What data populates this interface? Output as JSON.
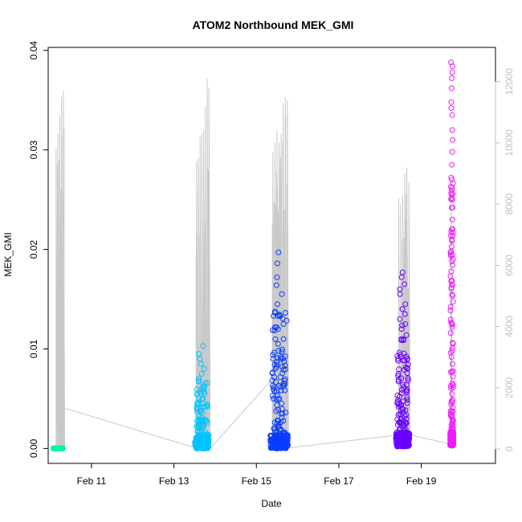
{
  "chart_data": {
    "type": "scatter",
    "title": "ATOM2 Northbound MEK_GMI",
    "xlabel": "Date",
    "ylabel": "MEK_GMI",
    "x_tick_labels": [
      "Feb 11",
      "Feb 13",
      "Feb 15",
      "Feb 17",
      "Feb 19"
    ],
    "x_tick_values": [
      11,
      13,
      15,
      17,
      19
    ],
    "xlim": [
      9.95,
      20.8
    ],
    "y_tick_labels": [
      "0.00",
      "0.01",
      "0.02",
      "0.03",
      "0.04"
    ],
    "y_tick_values": [
      0,
      0.01,
      0.02,
      0.03,
      0.04
    ],
    "ylim": [
      -0.0015,
      0.0403
    ],
    "y2_tick_labels": [
      "0",
      "2000",
      "4000",
      "6000",
      "8000",
      "10000",
      "12000"
    ],
    "y2_tick_values": [
      0,
      2000,
      4000,
      6000,
      8000,
      10000,
      12000
    ],
    "y2lim": [
      -470,
      13120
    ],
    "grid": false,
    "colors": {
      "line": "#c8c8c8",
      "axis": "#000000",
      "right_axis": "#c0c0c0",
      "series": [
        "#00f5a8",
        "#00c4ff",
        "#0a3cff",
        "#6a00ff",
        "#ee1aff"
      ]
    },
    "line_series": [
      {
        "x": 10.18,
        "y2": 1400
      },
      {
        "x": 13.5,
        "y2": 50
      },
      {
        "x": 13.9,
        "y2": 50
      },
      {
        "x": 15.4,
        "y2": 2300
      },
      {
        "x": 15.8,
        "y2": 40
      },
      {
        "x": 18.4,
        "y2": 450
      },
      {
        "x": 18.6,
        "y2": 500
      },
      {
        "x": 19.75,
        "y2": 150
      }
    ],
    "spike_clusters": [
      {
        "x_start": 10.14,
        "x_end": 10.32,
        "peaks_y2": [
          9800,
          10300,
          10900,
          11500,
          11700
        ]
      },
      {
        "x_start": 13.55,
        "x_end": 13.85,
        "peaks_y2": [
          9400,
          9500,
          10200,
          10300,
          10400,
          11200,
          12100,
          11800
        ]
      },
      {
        "x_start": 15.4,
        "x_end": 15.75,
        "peaks_y2": [
          9700,
          10000,
          10400,
          10000,
          10300,
          11300,
          11500,
          11400
        ]
      },
      {
        "x_start": 18.45,
        "x_end": 18.7,
        "peaks_y2": [
          8200,
          8000,
          8300,
          9000,
          9200,
          8700
        ]
      },
      {
        "x_start": 19.72,
        "x_end": 19.75,
        "peaks_y2": [
          8300
        ]
      }
    ],
    "series": [
      {
        "x_center": 10.19,
        "x_halfwidth": 0.12,
        "y_min": 0.0,
        "y_max": 0.0003,
        "peak_points": []
      },
      {
        "x_center": 13.68,
        "x_halfwidth": 0.17,
        "y_min": 0.0,
        "y_max": 0.0103,
        "peak_points": [
          0.0103,
          0.0095,
          0.009,
          0.0085,
          0.008,
          0.0075,
          0.007,
          0.005,
          0.0045
        ]
      },
      {
        "x_center": 15.56,
        "x_halfwidth": 0.22,
        "y_min": 0.0,
        "y_max": 0.0197,
        "peak_points": [
          0.0197,
          0.0186,
          0.0172,
          0.0164,
          0.0155,
          0.0145,
          0.0133,
          0.0125,
          0.012,
          0.011,
          0.0105,
          0.0098,
          0.009,
          0.0087,
          0.0082
        ]
      },
      {
        "x_center": 18.55,
        "x_halfwidth": 0.17,
        "y_min": 0.0002,
        "y_max": 0.0177,
        "peak_points": [
          0.0177,
          0.0172,
          0.0165,
          0.016,
          0.0155,
          0.0145,
          0.014,
          0.0135,
          0.013,
          0.0125,
          0.012,
          0.011
        ]
      },
      {
        "x_center": 19.74,
        "x_halfwidth": 0.04,
        "y_min": 0.0003,
        "y_max": 0.0388,
        "peak_points": [
          0.0388,
          0.0384,
          0.0378,
          0.0372,
          0.0362,
          0.0348,
          0.0342,
          0.0335,
          0.032,
          0.031,
          0.0298,
          0.0285,
          0.0272,
          0.0262,
          0.025,
          0.0242,
          0.023,
          0.0218,
          0.021,
          0.0198
        ]
      }
    ]
  }
}
